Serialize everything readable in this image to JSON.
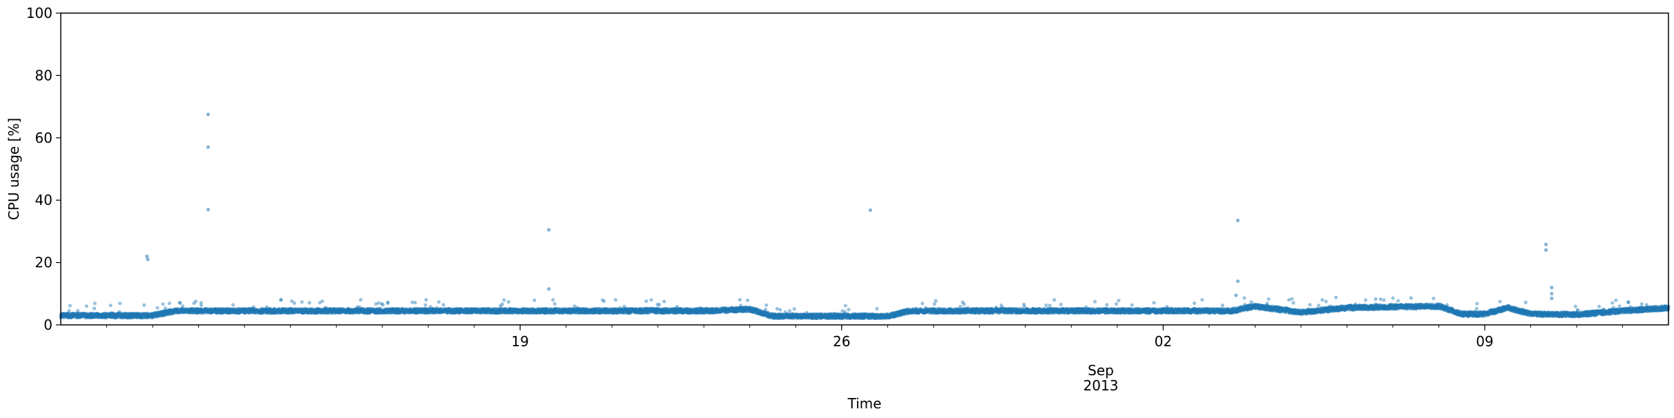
{
  "chart_data": {
    "type": "scatter",
    "title": "",
    "xlabel": "Time",
    "ylabel": "CPU usage [%]",
    "ylim": [
      0,
      100
    ],
    "xlim": [
      "2013-08-09",
      "2013-09-13"
    ],
    "x_ticks": [
      {
        "date": "2013-08-19",
        "label": "19"
      },
      {
        "date": "2013-08-26",
        "label": "26"
      },
      {
        "date": "2013-09-02",
        "label": "02"
      },
      {
        "date": "2013-09-09",
        "label": "09"
      }
    ],
    "x_month_label": {
      "date": "2013-09-01",
      "month": "Sep",
      "year": "2013"
    },
    "y_ticks": [
      0,
      20,
      40,
      60,
      80,
      100
    ],
    "grid": false,
    "legend": "none",
    "color": "#1f77b4",
    "series": [
      {
        "baseline": [
          [
            "2013-08-09",
            3.0
          ],
          [
            "2013-08-11",
            3.0
          ],
          [
            "2013-08-11 12:00",
            4.5
          ],
          [
            "2013-08-23",
            4.5
          ],
          [
            "2013-08-24",
            5.0
          ],
          [
            "2013-08-24 12:00",
            2.8
          ],
          [
            "2013-08-27",
            2.8
          ],
          [
            "2013-08-27 12:00",
            4.5
          ],
          [
            "2013-09-03 12:00",
            4.5
          ],
          [
            "2013-09-04",
            6.0
          ],
          [
            "2013-09-05",
            4.0
          ],
          [
            "2013-09-06",
            5.5
          ],
          [
            "2013-09-08",
            6.0
          ],
          [
            "2013-09-08 12:00",
            3.5
          ],
          [
            "2013-09-09",
            3.5
          ],
          [
            "2013-09-09 12:00",
            5.5
          ],
          [
            "2013-09-10",
            3.5
          ],
          [
            "2013-09-11",
            3.3
          ],
          [
            "2013-09-12",
            4.5
          ],
          [
            "2013-09-13",
            5.5
          ]
        ],
        "spikes": [
          [
            "2013-08-10 21:00",
            22.0
          ],
          [
            "2013-08-10 21:30",
            21.0
          ],
          [
            "2013-08-12 05:00",
            67.5
          ],
          [
            "2013-08-12 05:00",
            57.0
          ],
          [
            "2013-08-12 05:00",
            37.0
          ],
          [
            "2013-08-19 15:00",
            30.5
          ],
          [
            "2013-08-19 15:00",
            11.5
          ],
          [
            "2013-08-26 15:00",
            36.8
          ],
          [
            "2013-09-03 15:00",
            33.5
          ],
          [
            "2013-09-03 15:00",
            14.0
          ],
          [
            "2013-09-03 14:00",
            9.5
          ],
          [
            "2013-09-10 08:00",
            25.8
          ],
          [
            "2013-09-10 08:00",
            24.0
          ],
          [
            "2013-09-10 11:00",
            12.0
          ],
          [
            "2013-09-10 11:00",
            10.0
          ],
          [
            "2013-09-10 11:00",
            8.5
          ]
        ]
      }
    ]
  }
}
